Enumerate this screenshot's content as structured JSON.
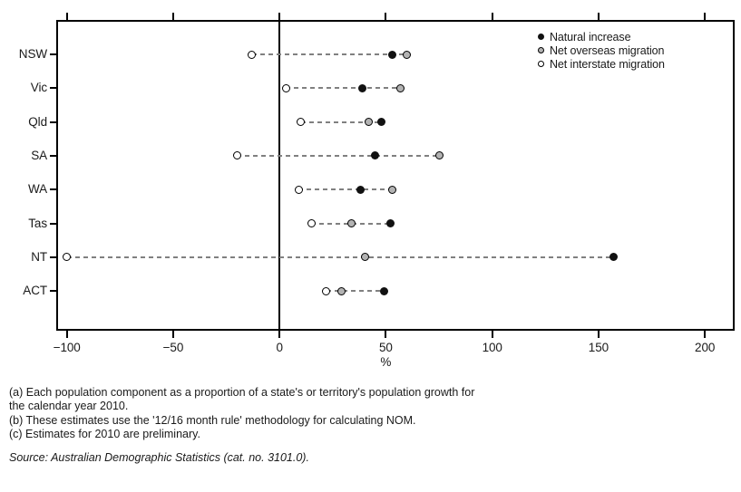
{
  "chart_data": {
    "type": "scatter",
    "subtype": "dot-plot",
    "title": "",
    "xlabel": "%",
    "x_ticks": [
      -100,
      -50,
      0,
      50,
      100,
      150,
      200
    ],
    "x_range": [
      -105,
      214
    ],
    "grid": false,
    "zero_line": true,
    "legend_position": "top-right-inside",
    "categories": [
      "NSW",
      "Vic",
      "Qld",
      "SA",
      "WA",
      "Tas",
      "NT",
      "ACT"
    ],
    "series": [
      {
        "name": "Natural increase",
        "marker": "black",
        "values": [
          53,
          39,
          48,
          45,
          38,
          52,
          157,
          49
        ]
      },
      {
        "name": "Net overseas migration",
        "marker": "grey",
        "values": [
          60,
          57,
          42,
          75,
          53,
          34,
          40,
          29
        ]
      },
      {
        "name": "Net interstate migration",
        "marker": "open",
        "values": [
          -13,
          3,
          10,
          -20,
          9,
          15,
          -100,
          22
        ]
      }
    ]
  },
  "footnotes": {
    "lines": [
      "(a) Each population component as a proportion of a state's or territory's population growth for",
      "the calendar year 2010.",
      "(b) These estimates use the '12/16 month rule' methodology for calculating NOM.",
      "(c) Estimates for 2010 are preliminary."
    ]
  },
  "source": "Source: Australian Demographic Statistics (cat. no. 3101.0).",
  "colors": {
    "axis": "#000000",
    "text": "#1a1a1a",
    "dash_line": "#808080",
    "marker_black": "#111111",
    "marker_grey": "#b3b3b3",
    "marker_open": "#ffffff"
  }
}
